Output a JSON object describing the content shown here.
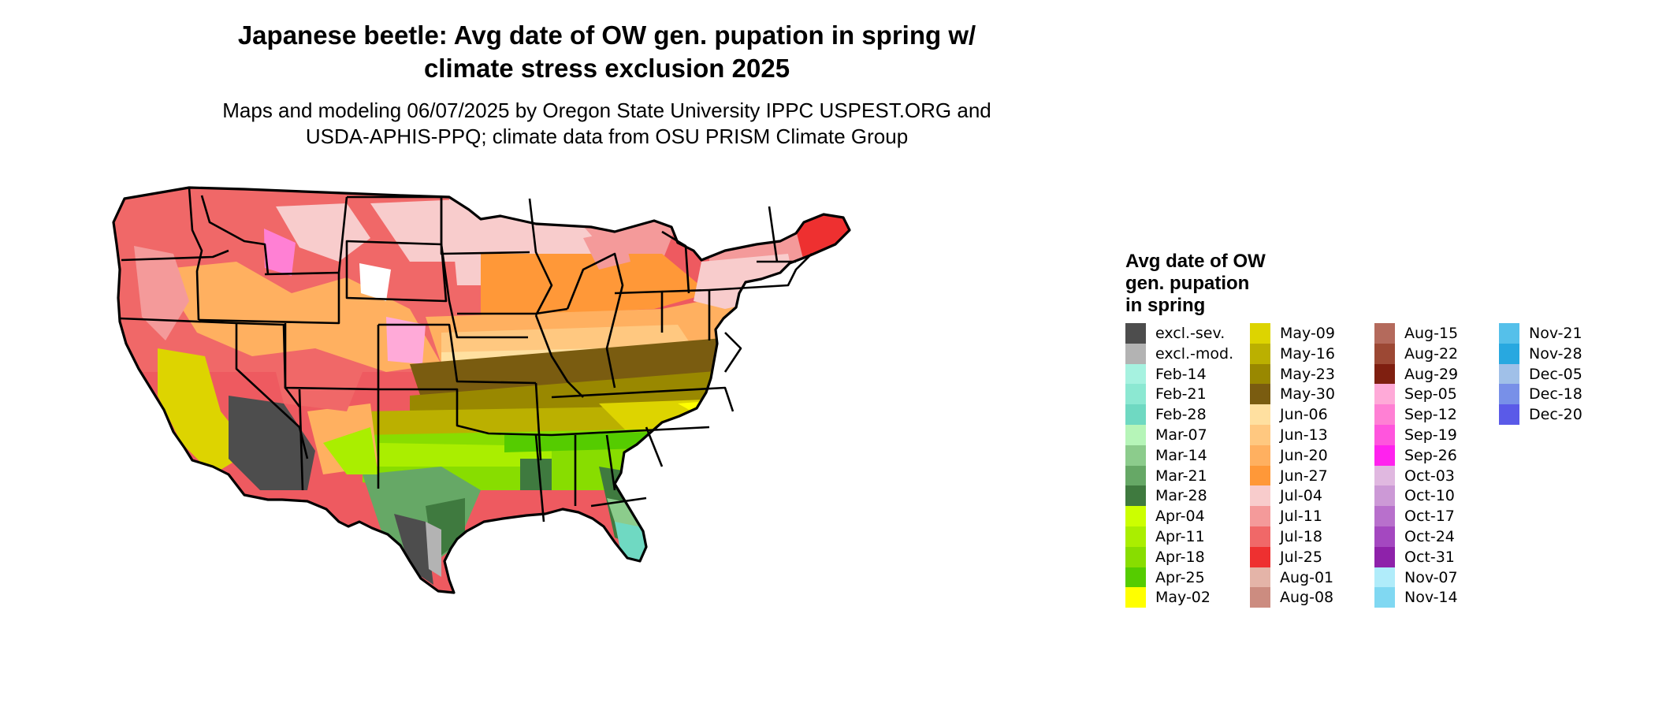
{
  "title_line1": "Japanese beetle: Avg date of OW gen. pupation in spring w/",
  "title_line2": "climate stress exclusion 2025",
  "subtitle_line1": "Maps and modeling 06/07/2025 by Oregon State University IPPC USPEST.ORG and",
  "subtitle_line2": "USDA-APHIS-PPQ; climate data from OSU PRISM Climate Group",
  "legend": {
    "title_line1": "Avg date of OW",
    "title_line2": "gen. pupation",
    "title_line3": "in spring",
    "items": [
      {
        "label": "excl.-sev.",
        "color": "#4d4d4d"
      },
      {
        "label": "excl.-mod.",
        "color": "#b3b3b3"
      },
      {
        "label": "Feb-14",
        "color": "#a6f2e0"
      },
      {
        "label": "Feb-21",
        "color": "#8ce8d2"
      },
      {
        "label": "Feb-28",
        "color": "#6fd9c2"
      },
      {
        "label": "Mar-07",
        "color": "#b6f5b8"
      },
      {
        "label": "Mar-14",
        "color": "#8ccc8c"
      },
      {
        "label": "Mar-21",
        "color": "#66a866"
      },
      {
        "label": "Mar-28",
        "color": "#3f7a3f"
      },
      {
        "label": "Apr-04",
        "color": "#ccff00"
      },
      {
        "label": "Apr-11",
        "color": "#aaee00"
      },
      {
        "label": "Apr-18",
        "color": "#88dd00"
      },
      {
        "label": "Apr-25",
        "color": "#55cc00"
      },
      {
        "label": "May-02",
        "color": "#ffff00"
      },
      {
        "label": "May-09",
        "color": "#ddd400"
      },
      {
        "label": "May-16",
        "color": "#bbb000"
      },
      {
        "label": "May-23",
        "color": "#998800"
      },
      {
        "label": "May-30",
        "color": "#7a5c10"
      },
      {
        "label": "Jun-06",
        "color": "#ffe0a0"
      },
      {
        "label": "Jun-13",
        "color": "#ffc880"
      },
      {
        "label": "Jun-20",
        "color": "#ffb060"
      },
      {
        "label": "Jun-27",
        "color": "#ff9838"
      },
      {
        "label": "Jul-04",
        "color": "#f8cccc"
      },
      {
        "label": "Jul-11",
        "color": "#f49a9a"
      },
      {
        "label": "Jul-18",
        "color": "#f06868"
      },
      {
        "label": "Jul-25",
        "color": "#ee3030"
      },
      {
        "label": "Aug-01",
        "color": "#e4b4a8"
      },
      {
        "label": "Aug-08",
        "color": "#cc8c80"
      },
      {
        "label": "Aug-15",
        "color": "#b46a5c"
      },
      {
        "label": "Aug-22",
        "color": "#9c4834"
      },
      {
        "label": "Aug-29",
        "color": "#7f1f10"
      },
      {
        "label": "Sep-05",
        "color": "#ffaad8"
      },
      {
        "label": "Sep-12",
        "color": "#ff80d4"
      },
      {
        "label": "Sep-19",
        "color": "#ff55dd"
      },
      {
        "label": "Sep-26",
        "color": "#ff22ee"
      },
      {
        "label": "Oct-03",
        "color": "#e0b8e0"
      },
      {
        "label": "Oct-10",
        "color": "#cc99d6"
      },
      {
        "label": "Oct-17",
        "color": "#b870cc"
      },
      {
        "label": "Oct-24",
        "color": "#a448c0"
      },
      {
        "label": "Oct-31",
        "color": "#8e22aa"
      },
      {
        "label": "Nov-07",
        "color": "#b0ecfa"
      },
      {
        "label": "Nov-14",
        "color": "#80d8f2"
      },
      {
        "label": "Nov-21",
        "color": "#55c0ea"
      },
      {
        "label": "Nov-28",
        "color": "#28a8e0"
      },
      {
        "label": "Dec-05",
        "color": "#a0c0e8"
      },
      {
        "label": "Dec-18",
        "color": "#7890e8"
      },
      {
        "label": "Dec-20",
        "color": "#5a5ae8"
      }
    ]
  }
}
